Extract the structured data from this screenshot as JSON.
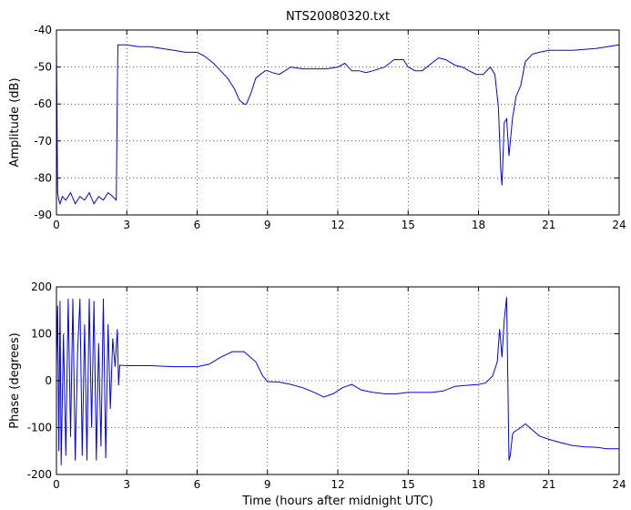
{
  "chart_data": [
    {
      "type": "line",
      "title": "NTS20080320.txt",
      "xlabel": "",
      "ylabel": "Amplitude (dB)",
      "xlim": [
        0,
        24
      ],
      "ylim": [
        -90,
        -40
      ],
      "xticks": [
        0,
        3,
        6,
        9,
        12,
        15,
        18,
        21,
        24
      ],
      "yticks": [
        -90,
        -80,
        -70,
        -60,
        -50,
        -40
      ],
      "xtick_labels": [
        "0",
        "3",
        "6",
        "9",
        "12",
        "15",
        "18",
        "21",
        "24"
      ],
      "ytick_labels": [
        "-90",
        "-80",
        "-70",
        "-60",
        "-50",
        "-40"
      ],
      "grid": true,
      "line_color": "#0000ff",
      "series": [
        {
          "x": [
            0,
            0.02,
            0.05,
            0.1,
            0.15,
            0.25,
            0.4,
            0.6,
            0.8,
            1.0,
            1.2,
            1.4,
            1.6,
            1.8,
            2.0,
            2.2,
            2.4,
            2.55,
            2.6,
            2.62,
            2.65,
            2.7,
            3.0,
            3.5,
            4.0,
            4.5,
            5.0,
            5.5,
            6.0,
            6.3,
            6.7,
            7.0,
            7.3,
            7.6,
            7.8,
            8.0,
            8.1,
            8.3,
            8.5,
            8.7,
            8.9,
            9.0,
            9.2,
            9.5,
            10.0,
            10.5,
            11.0,
            11.5,
            12.0,
            12.3,
            12.6,
            12.9,
            13.2,
            13.5,
            14.0,
            14.4,
            14.8,
            15.0,
            15.3,
            15.6,
            16.0,
            16.3,
            16.6,
            17.0,
            17.3,
            17.6,
            17.9,
            18.2,
            18.5,
            18.7,
            18.85,
            18.95,
            19.0,
            19.1,
            19.2,
            19.3,
            19.45,
            19.6,
            19.8,
            20.0,
            20.3,
            20.6,
            21.0,
            22.0,
            23.0,
            24.0
          ],
          "y": [
            -45,
            -60,
            -84,
            -86,
            -87,
            -85,
            -86,
            -84,
            -87,
            -85,
            -86,
            -84,
            -87,
            -85,
            -86,
            -84,
            -85,
            -86,
            -56,
            -44,
            -44,
            -44,
            -44,
            -44.5,
            -44.5,
            -45,
            -45.5,
            -46,
            -46,
            -47,
            -49,
            -51,
            -53,
            -56,
            -59,
            -60,
            -60,
            -57,
            -53,
            -52,
            -51,
            -51,
            -51.5,
            -52,
            -50,
            -50.5,
            -50.5,
            -50.5,
            -50,
            -49,
            -51,
            -51,
            -51.5,
            -51,
            -50,
            -48,
            -48,
            -50,
            -51,
            -51,
            -49,
            -47.5,
            -48,
            -49.5,
            -50,
            -51,
            -52,
            -52,
            -50,
            -52,
            -61,
            -78,
            -82,
            -65,
            -64,
            -74,
            -64,
            -58,
            -55,
            -48.5,
            -46.5,
            -46,
            -45.5,
            -45.5,
            -45,
            -44
          ]
        }
      ]
    },
    {
      "type": "line",
      "title": "",
      "xlabel": "Time (hours after midnight UTC)",
      "ylabel": "Phase (degrees)",
      "xlim": [
        0,
        24
      ],
      "ylim": [
        -200,
        200
      ],
      "xticks": [
        0,
        3,
        6,
        9,
        12,
        15,
        18,
        21,
        24
      ],
      "yticks": [
        -200,
        -100,
        0,
        100,
        200
      ],
      "xtick_labels": [
        "0",
        "3",
        "6",
        "9",
        "12",
        "15",
        "18",
        "21",
        "24"
      ],
      "ytick_labels": [
        "-200",
        "-100",
        "0",
        "100",
        "200"
      ],
      "grid": true,
      "line_color": "#0000ff",
      "series": [
        {
          "x": [
            0,
            0.05,
            0.1,
            0.15,
            0.2,
            0.3,
            0.4,
            0.5,
            0.6,
            0.7,
            0.8,
            0.9,
            1.0,
            1.1,
            1.2,
            1.3,
            1.4,
            1.5,
            1.6,
            1.7,
            1.8,
            1.9,
            2.0,
            2.1,
            2.2,
            2.3,
            2.4,
            2.5,
            2.6,
            2.65,
            2.7,
            3.0,
            4.0,
            5.0,
            6.0,
            6.5,
            7.0,
            7.5,
            8.0,
            8.5,
            8.8,
            9.0,
            9.5,
            10.0,
            10.5,
            11.0,
            11.4,
            11.8,
            12.2,
            12.6,
            13.0,
            13.5,
            14.0,
            14.5,
            15.0,
            15.5,
            16.0,
            16.5,
            17.0,
            17.5,
            18.0,
            18.3,
            18.6,
            18.8,
            18.9,
            19.0,
            19.05,
            19.1,
            19.2,
            19.3,
            19.35,
            19.4,
            19.45,
            19.5,
            19.8,
            20.0,
            20.3,
            20.6,
            21.0,
            21.5,
            22.0,
            22.5,
            23.0,
            23.5,
            24.0
          ],
          "y": [
            30,
            160,
            -150,
            170,
            -180,
            100,
            -160,
            175,
            -120,
            175,
            -170,
            60,
            175,
            -160,
            120,
            -170,
            175,
            -100,
            170,
            -170,
            80,
            -140,
            175,
            -165,
            120,
            -60,
            90,
            30,
            110,
            -10,
            33,
            32,
            32,
            30,
            30,
            35,
            50,
            62,
            62,
            40,
            10,
            -2,
            -3,
            -8,
            -15,
            -25,
            -35,
            -28,
            -15,
            -8,
            -20,
            -25,
            -28,
            -28,
            -25,
            -25,
            -25,
            -22,
            -12,
            -10,
            -8,
            -5,
            10,
            40,
            110,
            50,
            90,
            130,
            178,
            -170,
            -160,
            -140,
            -115,
            -110,
            -100,
            -92,
            -105,
            -118,
            -125,
            -132,
            -138,
            -141,
            -142,
            -145,
            -145
          ]
        }
      ]
    }
  ]
}
